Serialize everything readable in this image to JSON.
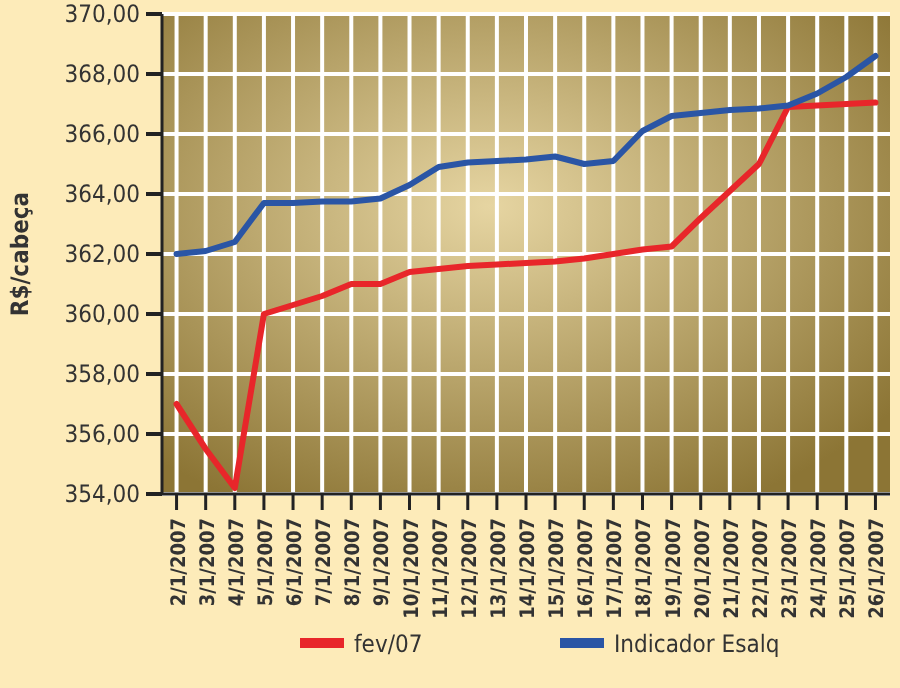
{
  "chart_data": {
    "type": "line",
    "ylabel": "R$/cabeça",
    "categories": [
      "2/1/2007",
      "3/1/2007",
      "4/1/2007",
      "5/1/2007",
      "6/1/2007",
      "7/1/2007",
      "8/1/2007",
      "9/1/2007",
      "10/1/2007",
      "11/1/2007",
      "12/1/2007",
      "13/1/2007",
      "14/1/2007",
      "15/1/2007",
      "16/1/2007",
      "17/1/2007",
      "18/1/2007",
      "19/1/2007",
      "20/1/2007",
      "21/1/2007",
      "22/1/2007",
      "23/1/2007",
      "24/1/2007",
      "25/1/2007",
      "26/1/2007"
    ],
    "series": [
      {
        "name": "fev/07",
        "color": "#e8262a",
        "values": [
          357.0,
          355.5,
          354.2,
          360.0,
          360.3,
          360.6,
          361.0,
          361.0,
          361.4,
          361.5,
          361.6,
          361.65,
          361.7,
          361.75,
          361.85,
          362.0,
          362.15,
          362.25,
          363.2,
          364.1,
          365.0,
          366.9,
          366.95,
          367.0,
          367.05
        ]
      },
      {
        "name": "Indicador Esalq",
        "color": "#2a55a5",
        "values": [
          362.0,
          362.1,
          362.4,
          363.7,
          363.7,
          363.75,
          363.75,
          363.85,
          364.3,
          364.9,
          365.05,
          365.1,
          365.15,
          365.25,
          365.0,
          365.1,
          366.1,
          366.6,
          366.7,
          366.8,
          366.85,
          366.95,
          367.35,
          367.9,
          368.6
        ]
      }
    ],
    "ylim": [
      354,
      370
    ],
    "yticks": [
      {
        "value": 354,
        "label": "354,00"
      },
      {
        "value": 356,
        "label": "356,00"
      },
      {
        "value": 358,
        "label": "358,00"
      },
      {
        "value": 360,
        "label": "360,00"
      },
      {
        "value": 362,
        "label": "362,00"
      },
      {
        "value": 364,
        "label": "364,00"
      },
      {
        "value": 366,
        "label": "366,00"
      },
      {
        "value": 368,
        "label": "368,00"
      },
      {
        "value": 370,
        "label": "370,00"
      }
    ],
    "grid": true,
    "legend": "bottom",
    "marker": "none",
    "line_style": "solid"
  }
}
